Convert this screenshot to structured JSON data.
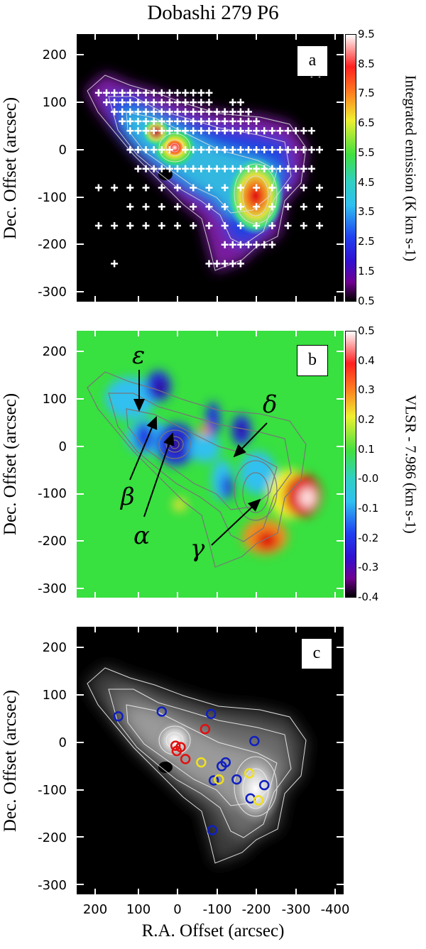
{
  "title": "Dobashi 279 P6",
  "y_label": "Dec. Offset (arcsec)",
  "x_label": "R.A. Offset (arcsec)",
  "y_ticks": [
    "200",
    "100",
    "0",
    "-100",
    "-200",
    "-300"
  ],
  "x_ticks": [
    "200",
    "100",
    "0",
    "-100",
    "-200",
    "-300",
    "-400"
  ],
  "colors": {
    "marker_red": "#e01010",
    "marker_blue": "#1020c0",
    "marker_yellow": "#f0e020"
  },
  "panel_a": {
    "letter": "a",
    "colorbar_label": "Integrated emission (K km s-1)",
    "colorbar_ticks": [
      "9.5",
      "8.5",
      "7.5",
      "6.5",
      "5.5",
      "4.5",
      "3.5",
      "2.5",
      "1.5",
      "0.5"
    ]
  },
  "panel_b": {
    "letter": "b",
    "colorbar_label": "VLSR - 7.986 (km s-1)",
    "colorbar_ticks": [
      "0.5",
      "0.4",
      "0.3",
      "0.2",
      "0.1",
      "-0.0",
      "-0.1",
      "-0.2",
      "-0.3",
      "-0.4"
    ],
    "annotations": {
      "alpha": "α",
      "beta": "β",
      "gamma": "γ",
      "delta": "δ",
      "epsilon": "ε"
    }
  },
  "panel_c": {
    "letter": "c",
    "circles": [
      {
        "color": "blue",
        "x": 150,
        "y": 55
      },
      {
        "color": "blue",
        "x": 40,
        "y": 65
      },
      {
        "color": "blue",
        "x": -85,
        "y": 60
      },
      {
        "color": "red",
        "x": -70,
        "y": 28
      },
      {
        "color": "blue",
        "x": -195,
        "y": 3
      },
      {
        "color": "red",
        "x": 5,
        "y": -7
      },
      {
        "color": "red",
        "x": -8,
        "y": -10
      },
      {
        "color": "red",
        "x": 2,
        "y": -18
      },
      {
        "color": "red",
        "x": -20,
        "y": -35
      },
      {
        "color": "yellow",
        "x": -60,
        "y": -42
      },
      {
        "color": "blue",
        "x": -112,
        "y": -50
      },
      {
        "color": "blue",
        "x": -122,
        "y": -42
      },
      {
        "color": "yellow",
        "x": -182,
        "y": -65
      },
      {
        "color": "blue",
        "x": -92,
        "y": -80
      },
      {
        "color": "yellow",
        "x": -105,
        "y": -78
      },
      {
        "color": "blue",
        "x": -150,
        "y": -78
      },
      {
        "color": "blue",
        "x": -220,
        "y": -90
      },
      {
        "color": "blue",
        "x": -185,
        "y": -118
      },
      {
        "color": "yellow",
        "x": -205,
        "y": -122
      },
      {
        "color": "blue",
        "x": -88,
        "y": -185
      }
    ]
  }
}
